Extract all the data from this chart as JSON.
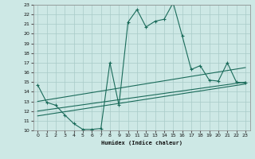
{
  "xlabel": "Humidex (Indice chaleur)",
  "bg_color": "#cde8e5",
  "line_color": "#1a6b5a",
  "grid_color": "#a8cbc8",
  "line1_x": [
    0,
    1,
    2,
    3,
    4,
    5,
    6,
    7,
    8,
    9,
    10,
    11,
    12,
    13,
    14,
    15,
    16,
    17,
    18,
    19,
    20,
    21,
    22,
    23
  ],
  "line1_y": [
    14.7,
    12.9,
    12.6,
    11.6,
    10.7,
    10.1,
    10.1,
    10.2,
    17.0,
    12.6,
    21.2,
    22.5,
    20.7,
    21.3,
    21.5,
    23.2,
    19.8,
    16.3,
    16.7,
    15.2,
    15.1,
    17.0,
    15.0,
    14.9
  ],
  "line2_x": [
    0,
    23
  ],
  "line2_y": [
    13.0,
    16.5
  ],
  "line3_x": [
    0,
    23
  ],
  "line3_y": [
    12.0,
    15.0
  ],
  "line4_x": [
    0,
    23
  ],
  "line4_y": [
    11.5,
    14.8
  ],
  "xlim": [
    -0.5,
    23.5
  ],
  "ylim": [
    10,
    23
  ],
  "xticks": [
    0,
    1,
    2,
    3,
    4,
    5,
    6,
    7,
    8,
    9,
    10,
    11,
    12,
    13,
    14,
    15,
    16,
    17,
    18,
    19,
    20,
    21,
    22,
    23
  ],
  "yticks": [
    10,
    11,
    12,
    13,
    14,
    15,
    16,
    17,
    18,
    19,
    20,
    21,
    22,
    23
  ]
}
